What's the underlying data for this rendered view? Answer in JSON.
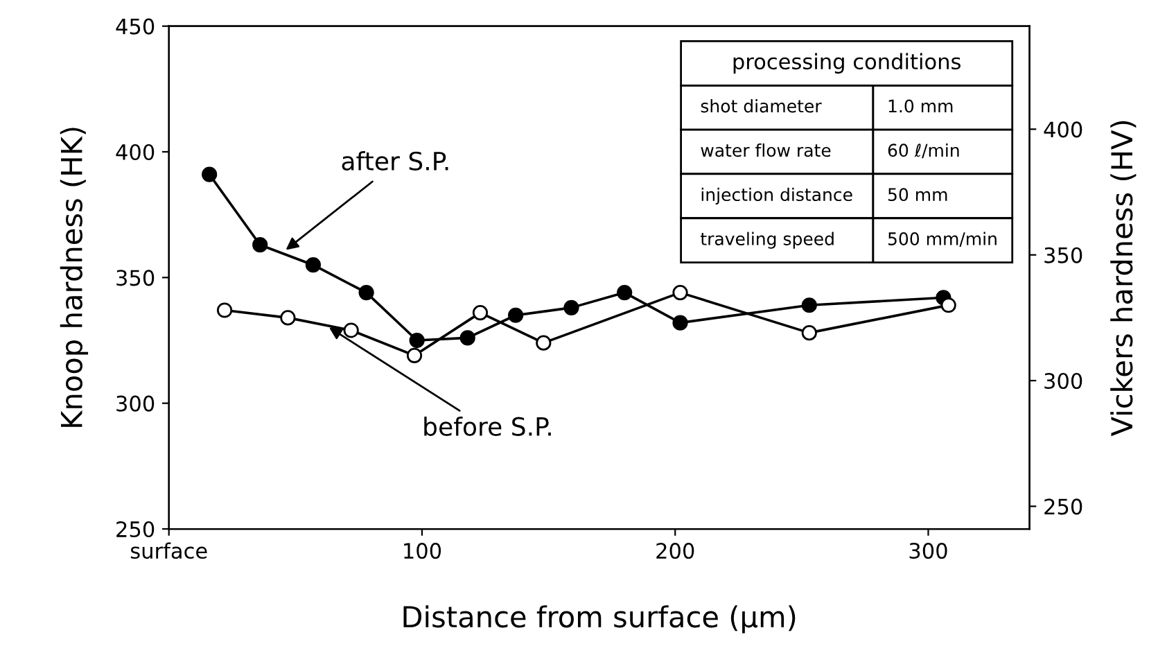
{
  "chart_data": {
    "type": "line",
    "xlabel": "Distance from surface (μm)",
    "ylabel": "Knoop hardness (HK)",
    "y2label": "Vickers hardness (HV)",
    "xlim": [
      0,
      340
    ],
    "xticks": [
      {
        "value": 0,
        "label": "surface"
      },
      100,
      200,
      300
    ],
    "ylim": [
      250,
      450
    ],
    "yticks": [
      250,
      300,
      350,
      400,
      450
    ],
    "y2lim": [
      241,
      441
    ],
    "y2ticks": [
      250,
      300,
      350,
      400
    ],
    "grid": false,
    "legend": false,
    "marker": "circle",
    "line_style": "solid",
    "series": [
      {
        "color": "#000000",
        "x": [
          16,
          36,
          57,
          78,
          98,
          118,
          137,
          159,
          180,
          202,
          253,
          306
        ],
        "values": [
          391,
          363,
          355,
          344,
          325,
          326,
          335,
          338,
          344,
          332,
          339,
          342
        ]
      },
      {
        "color": "#000000",
        "x": [
          22,
          47,
          72,
          97,
          123,
          148,
          202,
          253,
          308
        ],
        "values": [
          337,
          334,
          329,
          319,
          336,
          324,
          344,
          328,
          339
        ]
      }
    ],
    "annotations": [
      {
        "text": "after S.P.",
        "x": 45,
        "y": 360
      },
      {
        "text": "before S.P.",
        "x": 62,
        "y": 331
      },
      "processing conditions",
      "shot diameter",
      "1.0 mm",
      "water flow rate",
      "60 ℓ/min",
      "injection distance",
      "50 mm",
      "traveling speed",
      "500 mm/min"
    ]
  }
}
